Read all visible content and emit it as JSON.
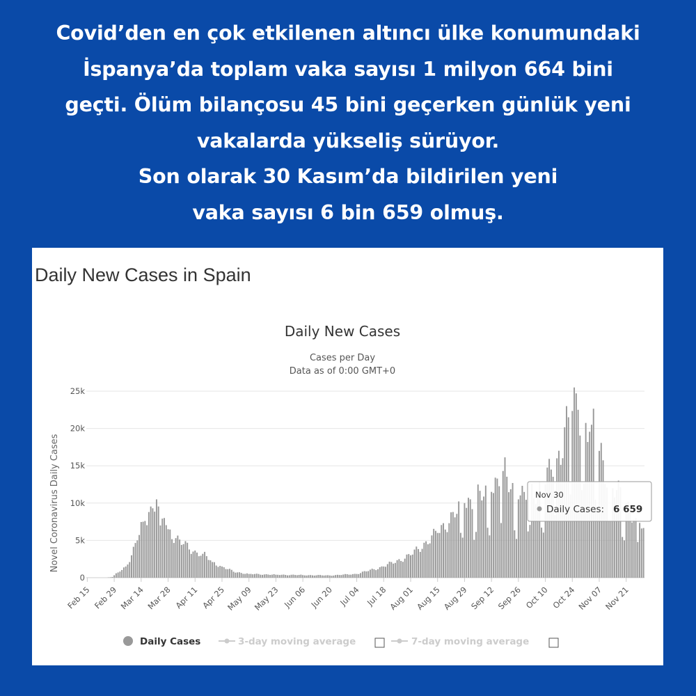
{
  "headline": {
    "lines": [
      "Covid’den en çok etkilenen altıncı ülke konumundaki",
      "İspanya’da toplam vaka sayısı 1 milyon 664 bini",
      "geçti. Ölüm bilançosu 45 bini geçerken günlük yeni",
      "vakalarda yükseliş sürüyor.",
      "Son olarak 30 Kasım’da bildirilen yeni",
      "vaka sayısı 6 bin 659 olmuş."
    ]
  },
  "page_title": "Daily New Cases in Spain",
  "colors": {
    "background": "#0a4aa8",
    "bar": "#999999",
    "headline_text": "#ffffff"
  },
  "chart_data": {
    "type": "bar",
    "title": "Daily New Cases",
    "subtitle": "Cases per Day",
    "subtitle2": "Data as of 0:00 GMT+0",
    "ylabel": "Novel Coronavirus Daily Cases",
    "xlabel": "",
    "ylim": [
      0,
      25000
    ],
    "yticks": [
      {
        "value": 0,
        "label": "0"
      },
      {
        "value": 5000,
        "label": "5k"
      },
      {
        "value": 10000,
        "label": "10k"
      },
      {
        "value": 15000,
        "label": "15k"
      },
      {
        "value": 20000,
        "label": "20k"
      },
      {
        "value": 25000,
        "label": "25k"
      }
    ],
    "xticks": [
      "Feb 15",
      "Feb 29",
      "Mar 14",
      "Mar 28",
      "Apr 11",
      "Apr 25",
      "May 09",
      "May 23",
      "Jun 06",
      "Jun 20",
      "Jul 04",
      "Jul 18",
      "Aug 01",
      "Aug 15",
      "Aug 29",
      "Sep 12",
      "Sep 26",
      "Oct 10",
      "Oct 24",
      "Nov 07",
      "Nov 21"
    ],
    "grid": true,
    "series": [
      {
        "name": "Daily Cases",
        "start_date": "2020-02-15",
        "end_date": "2020-11-30",
        "anchors": [
          {
            "date": "2020-02-15",
            "value": 0
          },
          {
            "date": "2020-02-25",
            "value": 0
          },
          {
            "date": "2020-02-28",
            "value": 100
          },
          {
            "date": "2020-03-02",
            "value": 700
          },
          {
            "date": "2020-03-06",
            "value": 1500
          },
          {
            "date": "2020-03-09",
            "value": 3000
          },
          {
            "date": "2020-03-12",
            "value": 5000
          },
          {
            "date": "2020-03-15",
            "value": 7500
          },
          {
            "date": "2020-03-18",
            "value": 8800
          },
          {
            "date": "2020-03-20",
            "value": 9300
          },
          {
            "date": "2020-03-22",
            "value": 10500
          },
          {
            "date": "2020-03-24",
            "value": 7000
          },
          {
            "date": "2020-03-26",
            "value": 8000
          },
          {
            "date": "2020-03-28",
            "value": 6500
          },
          {
            "date": "2020-04-01",
            "value": 5300
          },
          {
            "date": "2020-04-05",
            "value": 4500
          },
          {
            "date": "2020-04-10",
            "value": 3500
          },
          {
            "date": "2020-04-15",
            "value": 3200
          },
          {
            "date": "2020-04-20",
            "value": 2100
          },
          {
            "date": "2020-04-25",
            "value": 1500
          },
          {
            "date": "2020-05-01",
            "value": 800
          },
          {
            "date": "2020-05-09",
            "value": 500
          },
          {
            "date": "2020-05-23",
            "value": 400
          },
          {
            "date": "2020-06-06",
            "value": 350
          },
          {
            "date": "2020-06-20",
            "value": 300
          },
          {
            "date": "2020-07-04",
            "value": 500
          },
          {
            "date": "2020-07-18",
            "value": 1500
          },
          {
            "date": "2020-08-01",
            "value": 3000
          },
          {
            "date": "2020-08-15",
            "value": 6000
          },
          {
            "date": "2020-08-29",
            "value": 10000
          },
          {
            "date": "2020-09-12",
            "value": 11500
          },
          {
            "date": "2020-09-18",
            "value": 14300
          },
          {
            "date": "2020-09-26",
            "value": 10500
          },
          {
            "date": "2020-10-10",
            "value": 12500
          },
          {
            "date": "2020-10-16",
            "value": 16000
          },
          {
            "date": "2020-10-22",
            "value": 21500
          },
          {
            "date": "2020-10-27",
            "value": 22500
          },
          {
            "date": "2020-11-03",
            "value": 20500
          },
          {
            "date": "2020-11-07",
            "value": 17000
          },
          {
            "date": "2020-11-14",
            "value": 12000
          },
          {
            "date": "2020-11-21",
            "value": 10000
          },
          {
            "date": "2020-11-26",
            "value": 8000
          },
          {
            "date": "2020-11-30",
            "value": 6659
          }
        ]
      }
    ],
    "legend": {
      "placement": "bottom",
      "items": [
        {
          "label": "Daily Cases",
          "active": true
        },
        {
          "label": "3-day moving average",
          "active": false
        },
        {
          "label": "7-day moving average",
          "active": false
        }
      ]
    },
    "tooltip": {
      "date": "Nov 30",
      "label": "Daily Cases:",
      "value": "6 659"
    }
  }
}
